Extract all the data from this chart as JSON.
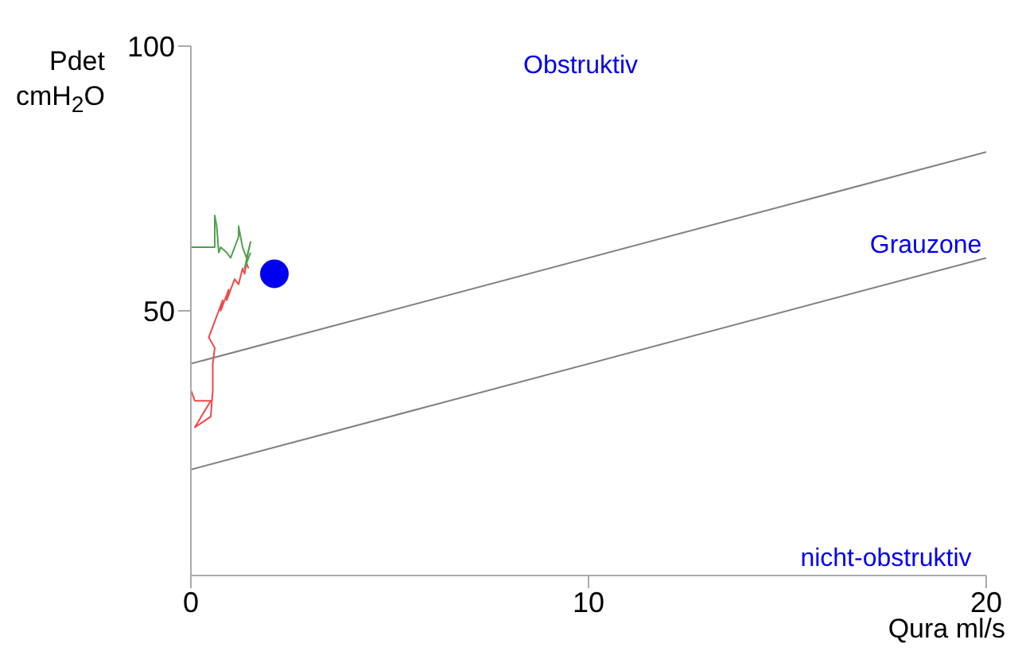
{
  "chart_data": {
    "type": "line",
    "xlabel": "Qura ml/s",
    "ylabel": "Pdet cmH$_{2}$O",
    "xlim": [
      0,
      20
    ],
    "ylim": [
      0,
      100
    ],
    "xticks": [
      0,
      10,
      20
    ],
    "yticks": [
      50,
      100
    ],
    "marker": "none",
    "series": [
      {
        "color": "#808080",
        "x": [
          0,
          20
        ],
        "values": [
          40,
          80
        ]
      },
      {
        "color": "#808080",
        "x": [
          0,
          20
        ],
        "values": [
          20,
          60
        ]
      },
      {
        "color": "#f04848",
        "x": [
          0,
          0,
          0.1,
          0.5,
          0.1,
          0.5,
          0.55,
          0.55,
          0.6,
          0.45,
          0.6,
          0.7,
          0.8,
          0.75,
          0.95,
          0.9,
          1.1,
          1.2,
          1.3,
          1.35,
          1.4,
          1.45
        ],
        "values": [
          0,
          35,
          33,
          33,
          28,
          30,
          35,
          40,
          43,
          45,
          48,
          50,
          52,
          50,
          54,
          52,
          56,
          55,
          58,
          57,
          59,
          58
        ]
      },
      {
        "color": "#50a050",
        "x": [
          0,
          0,
          0.6,
          0.6,
          0.65,
          0.7,
          0.75,
          0.9,
          1.0,
          1.2,
          1.2,
          1.3,
          1.4,
          1.5,
          1.35,
          1.5
        ],
        "values": [
          39,
          62,
          62,
          68,
          66,
          61,
          62,
          61,
          60,
          64,
          66,
          62,
          60,
          63,
          58,
          61
        ]
      },
      {
        "type": "scatter",
        "color": "#0000ee",
        "marker": "circle",
        "x": [
          2.1
        ],
        "values": [
          57
        ]
      }
    ],
    "annotations": [
      "Obstruktiv",
      "Grauzone",
      "nicht-obstruktiv"
    ]
  }
}
